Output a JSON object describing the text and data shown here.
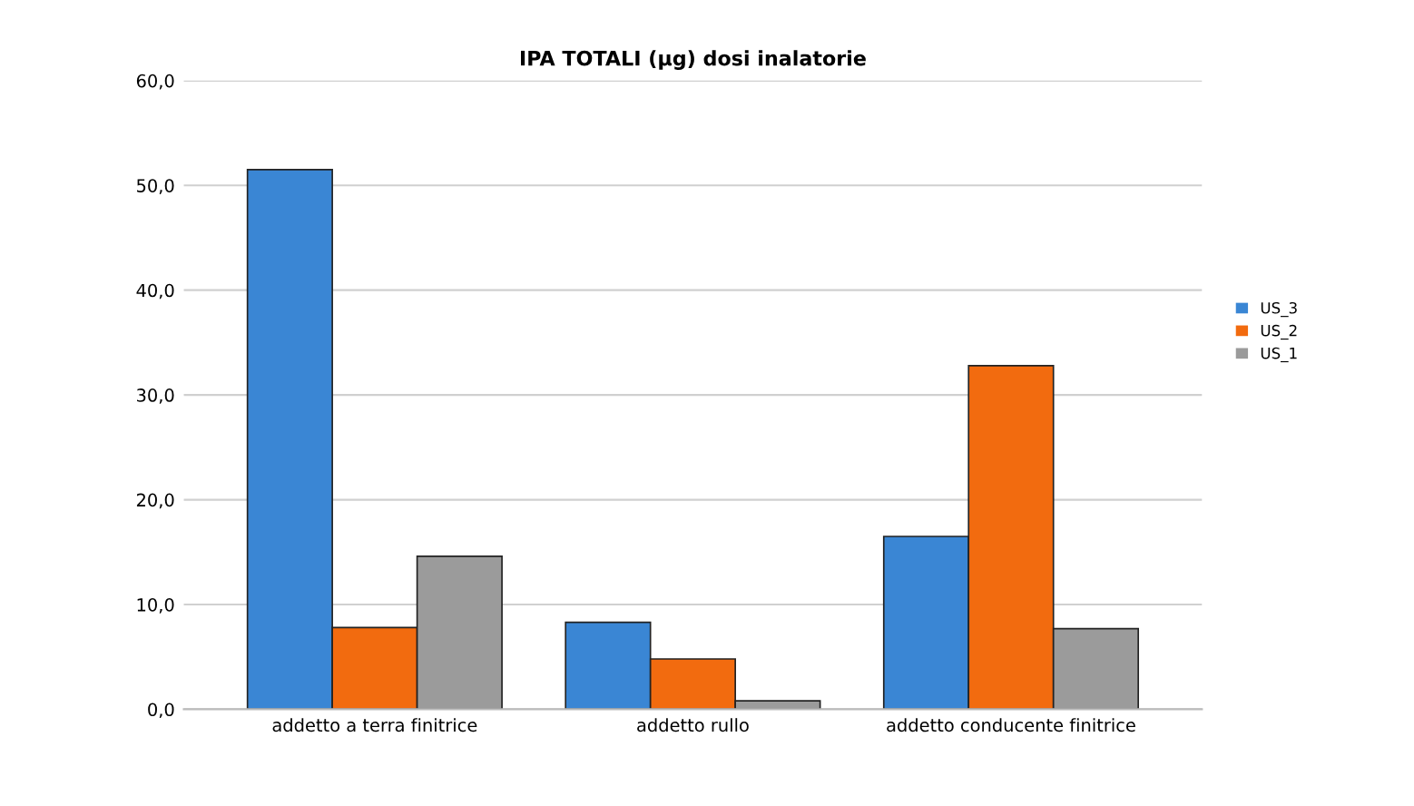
{
  "chart_data": {
    "type": "bar",
    "title": "IPA TOTALI (µg) dosi inalatorie",
    "categories": [
      "addetto a terra finitrice",
      "addetto rullo",
      "addetto conducente finitrice"
    ],
    "series": [
      {
        "name": "US_3",
        "color": "#3a86d4",
        "values": [
          51.5,
          8.3,
          16.5
        ]
      },
      {
        "name": "US_2",
        "color": "#f26b0f",
        "values": [
          7.8,
          4.8,
          32.8
        ]
      },
      {
        "name": "US_1",
        "color": "#9b9b9b",
        "values": [
          14.6,
          0.8,
          7.7
        ]
      }
    ],
    "ylim": [
      0,
      60
    ],
    "yticks": [
      {
        "value": 0,
        "label": "0,0"
      },
      {
        "value": 10,
        "label": "10,0"
      },
      {
        "value": 20,
        "label": "20,0"
      },
      {
        "value": 30,
        "label": "30,0"
      },
      {
        "value": 40,
        "label": "40,0"
      },
      {
        "value": 50,
        "label": "50,0"
      },
      {
        "value": 60,
        "label": "60,0"
      }
    ],
    "grid": "y",
    "legend": "right"
  }
}
